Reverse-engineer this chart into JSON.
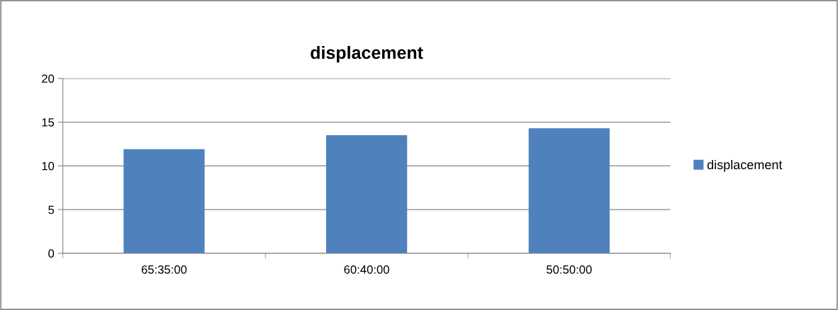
{
  "chart_data": {
    "type": "bar",
    "title": "displacement",
    "categories": [
      "65:35:00",
      "60:40:00",
      "50:50:00"
    ],
    "series": [
      {
        "name": "displacement",
        "color": "#4f81bd",
        "values": [
          11.9,
          13.5,
          14.3
        ]
      }
    ],
    "ylim": [
      0,
      20
    ],
    "yticks": [
      0,
      5,
      10,
      15,
      20
    ],
    "grid": "y",
    "legend": "right"
  }
}
